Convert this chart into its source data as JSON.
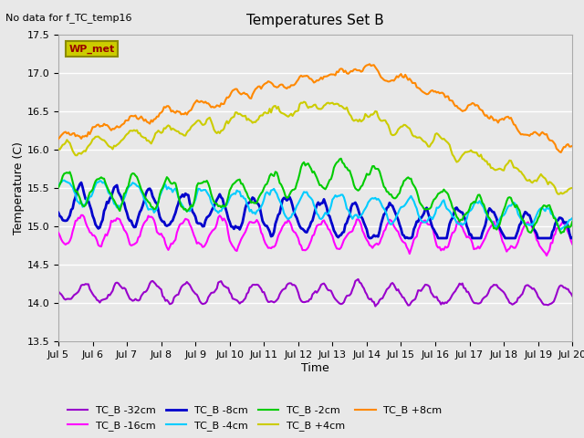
{
  "title": "Temperatures Set B",
  "top_left_note": "No data for f_TC_temp16",
  "xlabel": "Time",
  "ylabel": "Temperature (C)",
  "ylim": [
    13.5,
    17.5
  ],
  "xlim": [
    0,
    360
  ],
  "xtick_labels": [
    "Jul 5",
    "Jul 6",
    "Jul 7",
    "Jul 8",
    "Jul 9",
    "Jul 10",
    "Jul 11",
    "Jul 12",
    "Jul 13",
    "Jul 14",
    "Jul 15",
    "Jul 16",
    "Jul 17",
    "Jul 18",
    "Jul 19",
    "Jul 20"
  ],
  "xtick_positions": [
    0,
    24,
    48,
    72,
    96,
    120,
    144,
    168,
    192,
    216,
    240,
    264,
    288,
    312,
    336,
    360
  ],
  "ytick_labels": [
    "13.5",
    "14.0",
    "14.5",
    "15.0",
    "15.5",
    "16.0",
    "16.5",
    "17.0",
    "17.5"
  ],
  "ytick_positions": [
    13.5,
    14.0,
    14.5,
    15.0,
    15.5,
    16.0,
    16.5,
    17.0,
    17.5
  ],
  "legend_labels": [
    "TC_B -32cm",
    "TC_B -16cm",
    "TC_B -8cm",
    "TC_B -4cm",
    "TC_B -2cm",
    "TC_B +4cm",
    "TC_B +8cm"
  ],
  "line_colors": [
    "#9900cc",
    "#ff00ff",
    "#0000cc",
    "#00ccff",
    "#00cc00",
    "#cccc00",
    "#ff8800"
  ],
  "line_widths": [
    1.5,
    1.5,
    2.0,
    1.5,
    1.5,
    1.5,
    1.5
  ],
  "wp_met_box_color": "#cccc00",
  "wp_met_text_color": "#990000",
  "background_color": "#e8e8e8",
  "axes_facecolor": "#e8e8e8",
  "grid_color": "#ffffff",
  "n_points": 361
}
